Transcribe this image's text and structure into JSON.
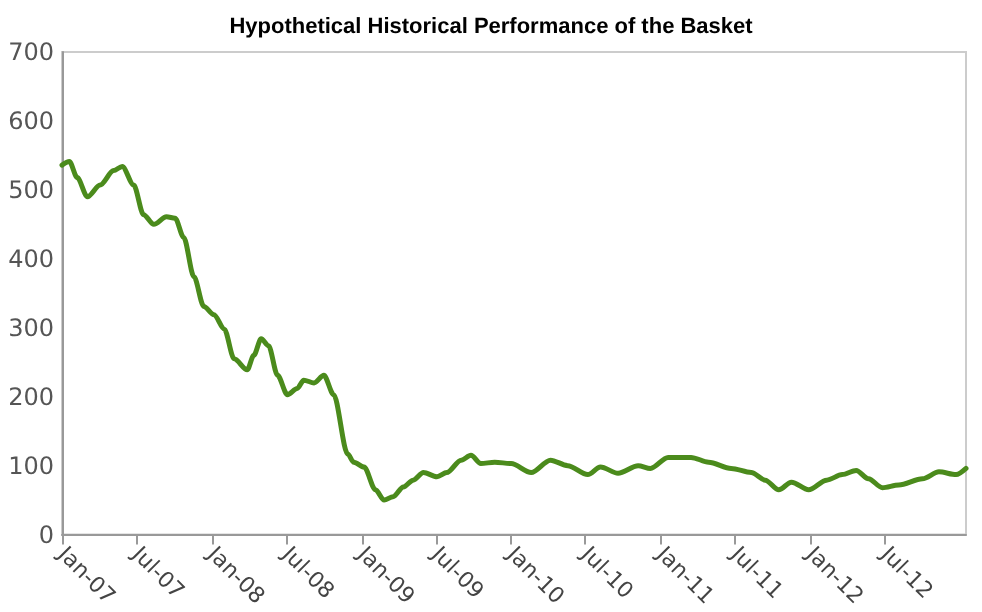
{
  "chart_data": {
    "type": "line",
    "title": "Hypothetical Historical Performance of the Basket",
    "x": [
      "2007-01-01",
      "2007-01-19",
      "2007-02-07",
      "2007-03-04",
      "2007-04-04",
      "2007-05-07",
      "2007-05-28",
      "2007-06-25",
      "2007-07-19",
      "2007-08-13",
      "2007-09-13",
      "2007-10-04",
      "2007-10-25",
      "2007-11-19",
      "2007-12-13",
      "2008-01-07",
      "2008-02-01",
      "2008-02-25",
      "2008-03-28",
      "2008-04-13",
      "2008-05-01",
      "2008-05-19",
      "2008-06-10",
      "2008-07-04",
      "2008-07-28",
      "2008-08-13",
      "2008-09-07",
      "2008-10-01",
      "2008-10-25",
      "2008-11-28",
      "2008-12-13",
      "2009-01-07",
      "2009-02-04",
      "2009-02-25",
      "2009-03-19",
      "2009-04-13",
      "2009-05-07",
      "2009-06-01",
      "2009-07-04",
      "2009-07-28",
      "2009-09-01",
      "2009-09-25",
      "2009-10-19",
      "2009-11-22",
      "2010-01-01",
      "2010-02-19",
      "2010-04-07",
      "2010-05-19",
      "2010-07-07",
      "2010-08-07",
      "2010-09-19",
      "2010-11-07",
      "2010-12-07",
      "2011-01-19",
      "2011-03-16",
      "2011-04-28",
      "2011-06-22",
      "2011-08-10",
      "2011-09-13",
      "2011-10-16",
      "2011-11-16",
      "2011-12-28",
      "2012-02-10",
      "2012-03-19",
      "2012-04-22",
      "2012-05-22",
      "2012-06-25",
      "2012-08-04",
      "2012-10-01",
      "2012-11-10",
      "2012-12-22",
      "2013-01-15"
    ],
    "series": [
      {
        "color": "#4b8b1c",
        "values": [
          536,
          541,
          518,
          490,
          507,
          528,
          534,
          507,
          464,
          450,
          461,
          459,
          431,
          374,
          331,
          319,
          298,
          255,
          239,
          260,
          284,
          274,
          231,
          203,
          212,
          224,
          220,
          231,
          203,
          117,
          105,
          98,
          65,
          50,
          55,
          69,
          79,
          90,
          84,
          90,
          108,
          115,
          103,
          105,
          103,
          90,
          108,
          100,
          87,
          98,
          89,
          100,
          96,
          112,
          112,
          105,
          96,
          90,
          79,
          65,
          76,
          65,
          79,
          87,
          93,
          81,
          68,
          72,
          81,
          91,
          87,
          96
        ]
      }
    ],
    "xlim": [
      "2007-01-01",
      "2013-01-15"
    ],
    "xticks": [
      {
        "value": "2007-01",
        "label": "Jan-07"
      },
      {
        "value": "2007-07",
        "label": "Jul-07"
      },
      {
        "value": "2008-01",
        "label": "Jan-08"
      },
      {
        "value": "2008-07",
        "label": "Jul-08"
      },
      {
        "value": "2009-01",
        "label": "Jan-09"
      },
      {
        "value": "2009-07",
        "label": "Jul-09"
      },
      {
        "value": "2010-01",
        "label": "Jan-10"
      },
      {
        "value": "2010-07",
        "label": "Jul-10"
      },
      {
        "value": "2011-01",
        "label": "Jan-11"
      },
      {
        "value": "2011-07",
        "label": "Jul-11"
      },
      {
        "value": "2012-01",
        "label": "Jan-12"
      },
      {
        "value": "2012-07",
        "label": "Jul-12"
      }
    ],
    "ylim": [
      0,
      700
    ],
    "yticks": [
      0,
      100,
      200,
      300,
      400,
      500,
      600,
      700
    ],
    "grid": false,
    "marker": "none",
    "line_style": "solid"
  }
}
